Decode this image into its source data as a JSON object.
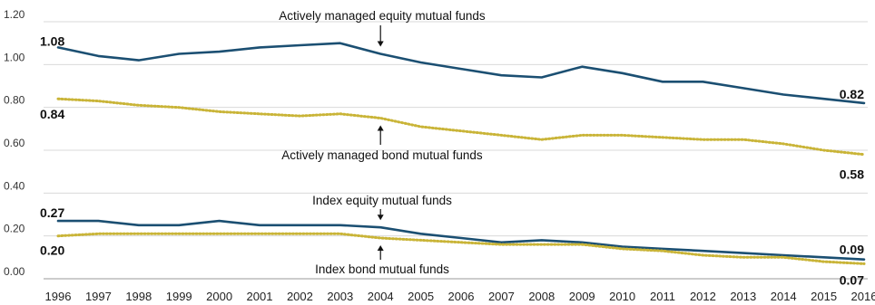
{
  "chart_data": {
    "type": "line",
    "x": [
      1996,
      1997,
      1998,
      1999,
      2000,
      2001,
      2002,
      2003,
      2004,
      2005,
      2006,
      2007,
      2008,
      2009,
      2010,
      2011,
      2012,
      2013,
      2014,
      2015,
      2016
    ],
    "x_tick_labels": [
      "1996",
      "1997",
      "1998",
      "1999",
      "2000",
      "2001",
      "2002",
      "2003",
      "2004",
      "2005",
      "2006",
      "2007",
      "2008",
      "2009",
      "2010",
      "2011",
      "2012",
      "2013",
      "2014",
      "2015",
      "2016"
    ],
    "y_tick_labels": [
      "0.00",
      "0.20",
      "0.40",
      "0.60",
      "0.80",
      "1.00",
      "1.20"
    ],
    "y_ticks": [
      0,
      0.2,
      0.4,
      0.6,
      0.8,
      1.0,
      1.2
    ],
    "ylim": [
      0,
      1.2
    ],
    "grid": true,
    "series": [
      {
        "name": "Actively managed equity mutual funds",
        "color": "#1b4f72",
        "style": "solid",
        "values": [
          1.08,
          1.04,
          1.02,
          1.05,
          1.06,
          1.08,
          1.09,
          1.1,
          1.05,
          1.01,
          0.98,
          0.95,
          0.94,
          0.99,
          0.96,
          0.92,
          0.92,
          0.89,
          0.86,
          0.84,
          0.82
        ],
        "start_label": "1.08",
        "end_label": "0.82"
      },
      {
        "name": "Actively managed bond mutual funds",
        "color": "#c9b437",
        "style": "dotted",
        "values": [
          0.84,
          0.83,
          0.81,
          0.8,
          0.78,
          0.77,
          0.76,
          0.77,
          0.75,
          0.71,
          0.69,
          0.67,
          0.65,
          0.67,
          0.67,
          0.66,
          0.65,
          0.65,
          0.63,
          0.6,
          0.58
        ],
        "start_label": "0.84",
        "end_label": "0.58"
      },
      {
        "name": "Index equity mutual funds",
        "color": "#1b4f72",
        "style": "solid",
        "values": [
          0.27,
          0.27,
          0.25,
          0.25,
          0.27,
          0.25,
          0.25,
          0.25,
          0.24,
          0.21,
          0.19,
          0.17,
          0.18,
          0.17,
          0.15,
          0.14,
          0.13,
          0.12,
          0.11,
          0.1,
          0.09
        ],
        "start_label": "0.27",
        "end_label": "0.09"
      },
      {
        "name": "Index bond mutual funds",
        "color": "#c9b437",
        "style": "dotted",
        "values": [
          0.2,
          0.21,
          0.21,
          0.21,
          0.21,
          0.21,
          0.21,
          0.21,
          0.19,
          0.18,
          0.17,
          0.16,
          0.16,
          0.16,
          0.14,
          0.13,
          0.11,
          0.1,
          0.1,
          0.08,
          0.07
        ],
        "start_label": "0.20",
        "end_label": "0.07"
      }
    ],
    "annotations": [
      {
        "text": "Actively managed equity mutual funds",
        "series": 0,
        "year": 2004,
        "position": "above"
      },
      {
        "text": "Actively managed bond mutual funds",
        "series": 1,
        "year": 2004,
        "position": "below"
      },
      {
        "text": "Index equity mutual funds",
        "series": 2,
        "year": 2004,
        "position": "above"
      },
      {
        "text": "Index bond mutual funds",
        "series": 3,
        "year": 2004,
        "position": "below"
      }
    ]
  }
}
